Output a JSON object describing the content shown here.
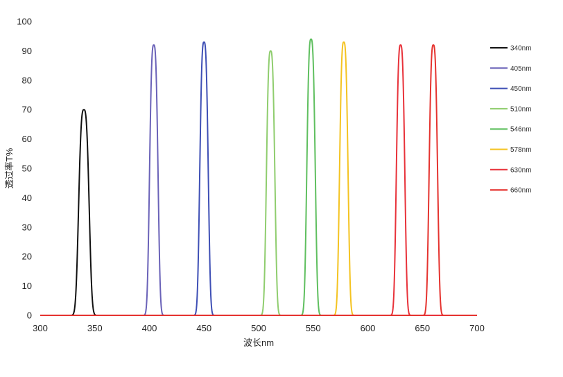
{
  "chart_data": {
    "type": "line",
    "xlabel": "波长nm",
    "ylabel": "透过率T%",
    "xlim": [
      300,
      700
    ],
    "ylim": [
      0,
      100
    ],
    "x_ticks": [
      "300",
      "350",
      "400",
      "450",
      "500",
      "550",
      "600",
      "650",
      "700"
    ],
    "y_ticks": [
      "0",
      "10",
      "20",
      "30",
      "40",
      "50",
      "60",
      "70",
      "80",
      "90",
      "100"
    ],
    "grid": false,
    "legend_position": "right",
    "series": [
      {
        "name": "340nm",
        "color": "#111111",
        "center": 340,
        "peak": 70,
        "fwhm": 10
      },
      {
        "name": "405nm",
        "color": "#6a62b8",
        "center": 404,
        "peak": 92,
        "fwhm": 8
      },
      {
        "name": "450nm",
        "color": "#3e4fb5",
        "center": 450,
        "peak": 93,
        "fwhm": 8
      },
      {
        "name": "510nm",
        "color": "#8fcd6e",
        "center": 511,
        "peak": 90,
        "fwhm": 8
      },
      {
        "name": "546nm",
        "color": "#5fbf5f",
        "center": 548,
        "peak": 94,
        "fwhm": 8
      },
      {
        "name": "578nm",
        "color": "#f4c321",
        "center": 578,
        "peak": 93,
        "fwhm": 8
      },
      {
        "name": "630nm",
        "color": "#e8323a",
        "center": 630,
        "peak": 92,
        "fwhm": 8
      },
      {
        "name": "660nm",
        "color": "#e5332f",
        "center": 660,
        "peak": 92,
        "fwhm": 8
      }
    ]
  }
}
